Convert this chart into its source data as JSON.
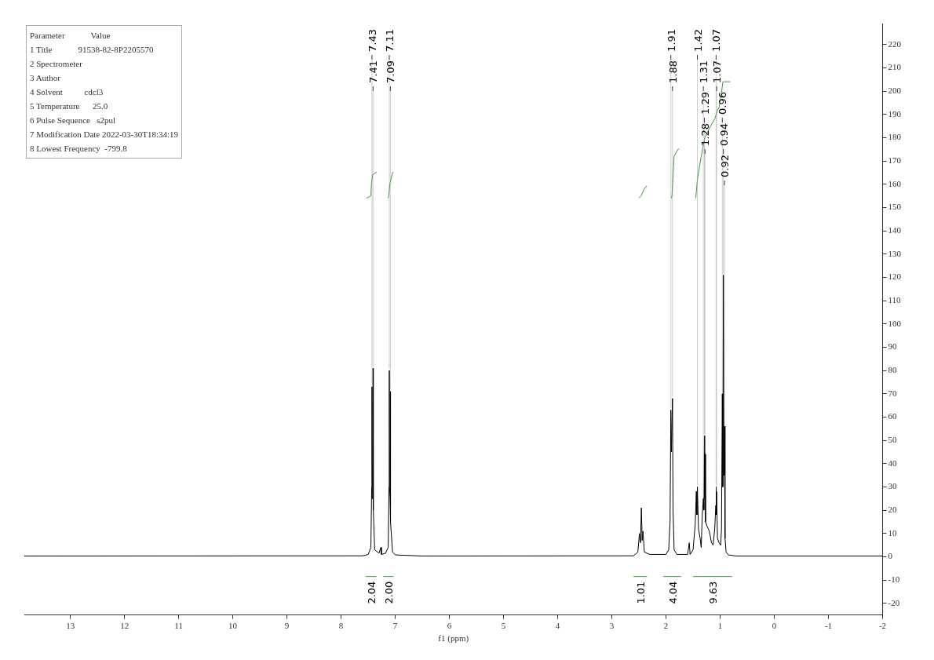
{
  "chart_data": {
    "type": "line",
    "xlabel": "f1 (ppm)",
    "xlim": [
      13.85,
      -2
    ],
    "xticks": [
      13,
      12,
      11,
      10,
      9,
      8,
      7,
      6,
      5,
      4,
      3,
      2,
      1,
      0,
      -1,
      -2
    ],
    "ylim": [
      -25,
      229
    ],
    "yticks": [
      -20,
      -10,
      0,
      10,
      20,
      30,
      40,
      50,
      60,
      70,
      80,
      90,
      100,
      110,
      120,
      130,
      140,
      150,
      160,
      170,
      180,
      190,
      200,
      210,
      220
    ],
    "grid": false,
    "legend": false,
    "marker": "none",
    "line_style": "solid",
    "series": [
      {
        "type": "line",
        "color": "#000000",
        "x": [
          13.85,
          7.6,
          7.5,
          7.45,
          7.435,
          7.43,
          7.425,
          7.415,
          7.41,
          7.405,
          7.38,
          7.3,
          7.265,
          7.255,
          7.18,
          7.13,
          7.115,
          7.11,
          7.105,
          7.095,
          7.09,
          7.085,
          7.05,
          7.0,
          6.5,
          2.6,
          2.52,
          2.49,
          2.47,
          2.455,
          2.44,
          2.425,
          2.4,
          2.3,
          2.0,
          1.95,
          1.925,
          1.91,
          1.9,
          1.88,
          1.87,
          1.85,
          1.8,
          1.6,
          1.57,
          1.555,
          1.5,
          1.46,
          1.44,
          1.43,
          1.42,
          1.4,
          1.37,
          1.35,
          1.33,
          1.31,
          1.3,
          1.29,
          1.285,
          1.28,
          1.27,
          1.24,
          1.2,
          1.16,
          1.13,
          1.1,
          1.08,
          1.075,
          1.07,
          1.065,
          1.05,
          1.02,
          0.99,
          0.975,
          0.96,
          0.95,
          0.94,
          0.93,
          0.92,
          0.91,
          0.89,
          0.85,
          0.7,
          -2
        ],
        "values": [
          0.3,
          0.4,
          1,
          4,
          30,
          73,
          25,
          30,
          81,
          20,
          3,
          1.5,
          4,
          1,
          1.5,
          4,
          30,
          80,
          30,
          25,
          71,
          15,
          2,
          0.8,
          0.3,
          0.4,
          2,
          10,
          6,
          21,
          7,
          11,
          2,
          1,
          1,
          3,
          15,
          63,
          45,
          68,
          20,
          3,
          1,
          1,
          6,
          1,
          3,
          14,
          28,
          18,
          30,
          12,
          8,
          4,
          18,
          25,
          20,
          52,
          25,
          44,
          15,
          13,
          11,
          6,
          5,
          12,
          22,
          30,
          18,
          28,
          8,
          6,
          5,
          12,
          70,
          30,
          121,
          35,
          56,
          8,
          2,
          0.8,
          0.3,
          0.3
        ]
      },
      {
        "type": "line",
        "color": "#3c9a3c",
        "x": [
          7.53,
          7.45,
          7.44,
          7.42,
          7.36,
          7.34,
          7.21,
          7.13,
          7.12,
          7.1,
          7.05,
          7.03,
          2.6,
          2.5,
          2.46,
          2.4,
          2.37,
          2.35,
          2.0,
          1.9,
          1.89,
          1.85,
          1.78,
          1.76,
          1.5,
          1.45,
          1.42,
          1.4,
          1.35,
          1.3,
          1.28,
          1.2,
          1.1,
          1.06,
          1.02,
          0.97,
          0.95,
          0.93,
          0.84,
          0.81
        ],
        "values": [
          154,
          155,
          160,
          164,
          165,
          165,
          null,
          154,
          155,
          160,
          165,
          165,
          null,
          154,
          155,
          158,
          159,
          159,
          null,
          154,
          155,
          172,
          175,
          175,
          null,
          154,
          162,
          165,
          172,
          178,
          180,
          184,
          188,
          191,
          193,
          200,
          204,
          204,
          204,
          204
        ]
      },
      {
        "type": "line",
        "color": "#3c9a3c",
        "x": [
          7.55,
          7.35,
          7.3,
          7.22,
          7.03,
          7.0,
          2.6,
          2.35,
          2.3,
          2.05,
          1.72,
          1.6,
          1.5,
          0.78
        ],
        "values": [
          -8.5,
          -8.5,
          null,
          -8.5,
          -8.5,
          null,
          -8.5,
          -8.5,
          null,
          -8.5,
          -8.5,
          null,
          -8.5,
          -8.5
        ]
      }
    ],
    "annotations": [
      "Parameter            Value",
      "1 Title            91538-82-8P2205570",
      "2 Spectrometer",
      "3 Author",
      "4 Solvent          cdcl3",
      "5 Temperature      25.0",
      "6 Pulse Sequence   s2pul",
      "7 Modification Date 2022-03-30T18:34:19",
      "8 Lowest Frequency  -799.8",
      {
        "text": "7.43",
        "x": 7.43,
        "y": 73
      },
      {
        "text": "7.41",
        "x": 7.41,
        "y": 81
      },
      {
        "text": "7.11",
        "x": 7.11,
        "y": 80
      },
      {
        "text": "7.09",
        "x": 7.09,
        "y": 71
      },
      {
        "text": "1.91",
        "x": 1.91,
        "y": 63
      },
      {
        "text": "1.88",
        "x": 1.88,
        "y": 68
      },
      {
        "text": "1.42",
        "x": 1.42,
        "y": 30
      },
      {
        "text": "1.31",
        "x": 1.31,
        "y": 25
      },
      {
        "text": "1.29",
        "x": 1.29,
        "y": 52
      },
      {
        "text": "1.28",
        "x": 1.28,
        "y": 44
      },
      {
        "text": "1.07",
        "x": 1.075,
        "y": 30
      },
      {
        "text": "1.07",
        "x": 1.065,
        "y": 28
      },
      {
        "text": "0.96",
        "x": 0.96,
        "y": 70
      },
      {
        "text": "0.94",
        "x": 0.94,
        "y": 121
      },
      {
        "text": "0.92",
        "x": 0.92,
        "y": 56
      },
      {
        "text": "2.04",
        "x": 7.45,
        "y": -8.5
      },
      {
        "text": "2.00",
        "x": 7.12,
        "y": -8.5
      },
      {
        "text": "1.01",
        "x": 2.47,
        "y": -8.5
      },
      {
        "text": "4.04",
        "x": 1.88,
        "y": -8.5
      },
      {
        "text": "9.63",
        "x": 1.14,
        "y": -8.5
      }
    ]
  }
}
